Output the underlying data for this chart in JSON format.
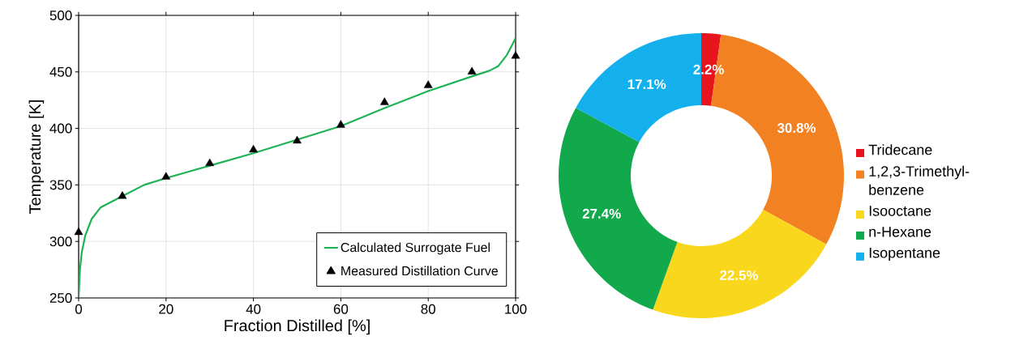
{
  "chart_data": [
    {
      "type": "line",
      "xlabel": "Fraction Distilled [%]",
      "ylabel": "Temperature [K]",
      "xlim": [
        0,
        100
      ],
      "ylim": [
        250,
        500
      ],
      "xticks": [
        0,
        20,
        40,
        60,
        80,
        100
      ],
      "yticks": [
        250,
        300,
        350,
        400,
        450,
        500
      ],
      "grid": true,
      "legend": "bottom right",
      "series": [
        {
          "name": "Calculated Surrogate Fuel",
          "type": "line",
          "color": "#1db254",
          "marker": "none",
          "line_style": "solid",
          "x": [
            0,
            0.3,
            0.7,
            1.5,
            3,
            5,
            10,
            15,
            20,
            30,
            40,
            50,
            60,
            70,
            80,
            90,
            94,
            96,
            98,
            99.5,
            100,
            100
          ],
          "values": [
            250,
            275,
            290,
            305,
            320,
            330,
            340,
            350,
            356,
            367,
            378,
            390,
            402,
            418,
            433,
            446,
            451,
            455,
            465,
            476,
            480,
            500
          ]
        },
        {
          "name": "Measured Distillation Curve",
          "type": "scatter",
          "color": "#000000",
          "marker": "triangle",
          "x": [
            0,
            10,
            20,
            30,
            40,
            50,
            60,
            70,
            80,
            90,
            100
          ],
          "values": [
            308,
            340,
            357,
            369,
            381,
            389,
            403,
            423,
            438,
            450,
            464
          ]
        }
      ]
    },
    {
      "type": "donut",
      "categories": [
        "Tridecane",
        "1,2,3-Trimethyl-benzene",
        "Isooctane",
        "n-Hexane",
        "Isopentane"
      ],
      "values": [
        2.2,
        30.8,
        22.5,
        27.4,
        17.1
      ],
      "colors": [
        "#e8141e",
        "#f28122",
        "#f9d71c",
        "#12a84c",
        "#14b0ee"
      ],
      "value_labels": [
        "2.2%",
        "30.8%",
        "22.5%",
        "27.4%",
        "17.1%"
      ],
      "legend": "right"
    }
  ]
}
